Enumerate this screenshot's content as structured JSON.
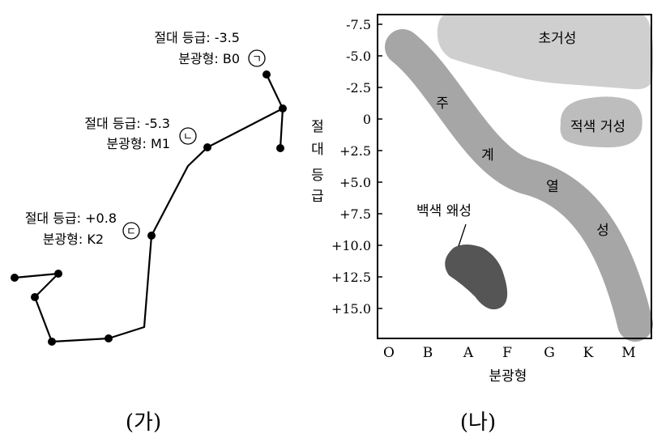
{
  "left_panel": {
    "caption": "(가)",
    "stars": [
      {
        "marker": "ㄱ",
        "line1": "절대 등급: -3.5",
        "line2": "분광형: B0"
      },
      {
        "marker": "ㄴ",
        "line1": "절대 등급: -5.3",
        "line2": "분광형: M1"
      },
      {
        "marker": "ㄷ",
        "line1": "절대 등급: +0.8",
        "line2": "분광형: K2"
      }
    ]
  },
  "right_panel": {
    "caption": "(나)",
    "ylabel_chars": [
      "절",
      "대",
      "등",
      "급"
    ],
    "xlabel": "분광형",
    "y_ticks": [
      "-7.5",
      "-5.0",
      "-2.5",
      "0",
      "+2.5",
      "+5.0",
      "+7.5",
      "+10.0",
      "+12.5",
      "+15.0"
    ],
    "x_ticks": [
      "O",
      "B",
      "A",
      "F",
      "G",
      "K",
      "M"
    ],
    "regions": {
      "supergiant": "초거성",
      "red_giant": "적색 거성",
      "white_dwarf": "백색 왜성",
      "main_sequence_chars": [
        "주",
        "계",
        "열",
        "성"
      ]
    },
    "colors": {
      "supergiant": "#cfcfcf",
      "red_giant": "#bdbdbd",
      "main_sequence": "#a6a6a6",
      "white_dwarf": "#555555"
    }
  }
}
